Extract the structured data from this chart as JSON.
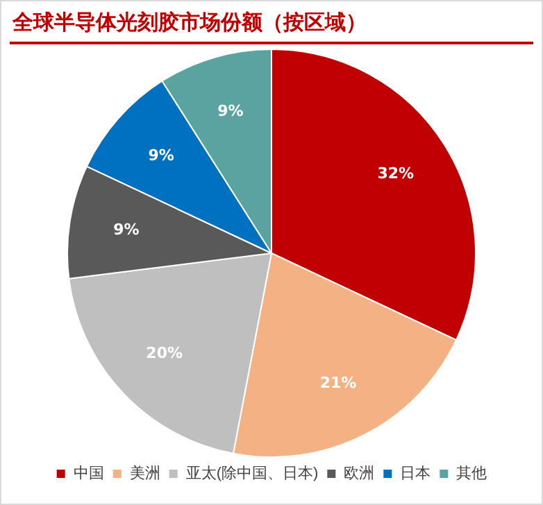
{
  "chart_data": {
    "type": "pie",
    "title": "全球半导体光刻胶市场份额（按区域）",
    "categories": [
      "中国",
      "美洲",
      "亚太(除中国、日本)",
      "欧洲",
      "日本",
      "其他"
    ],
    "values": [
      32,
      21,
      20,
      9,
      9,
      9
    ],
    "colors": [
      "#c00000",
      "#f4b183",
      "#bfbfbf",
      "#595959",
      "#0070c0",
      "#5ba3a0"
    ],
    "value_labels": [
      "32%",
      "21%",
      "20%",
      "9%",
      "9%",
      "9%"
    ],
    "legend": "bottom"
  }
}
